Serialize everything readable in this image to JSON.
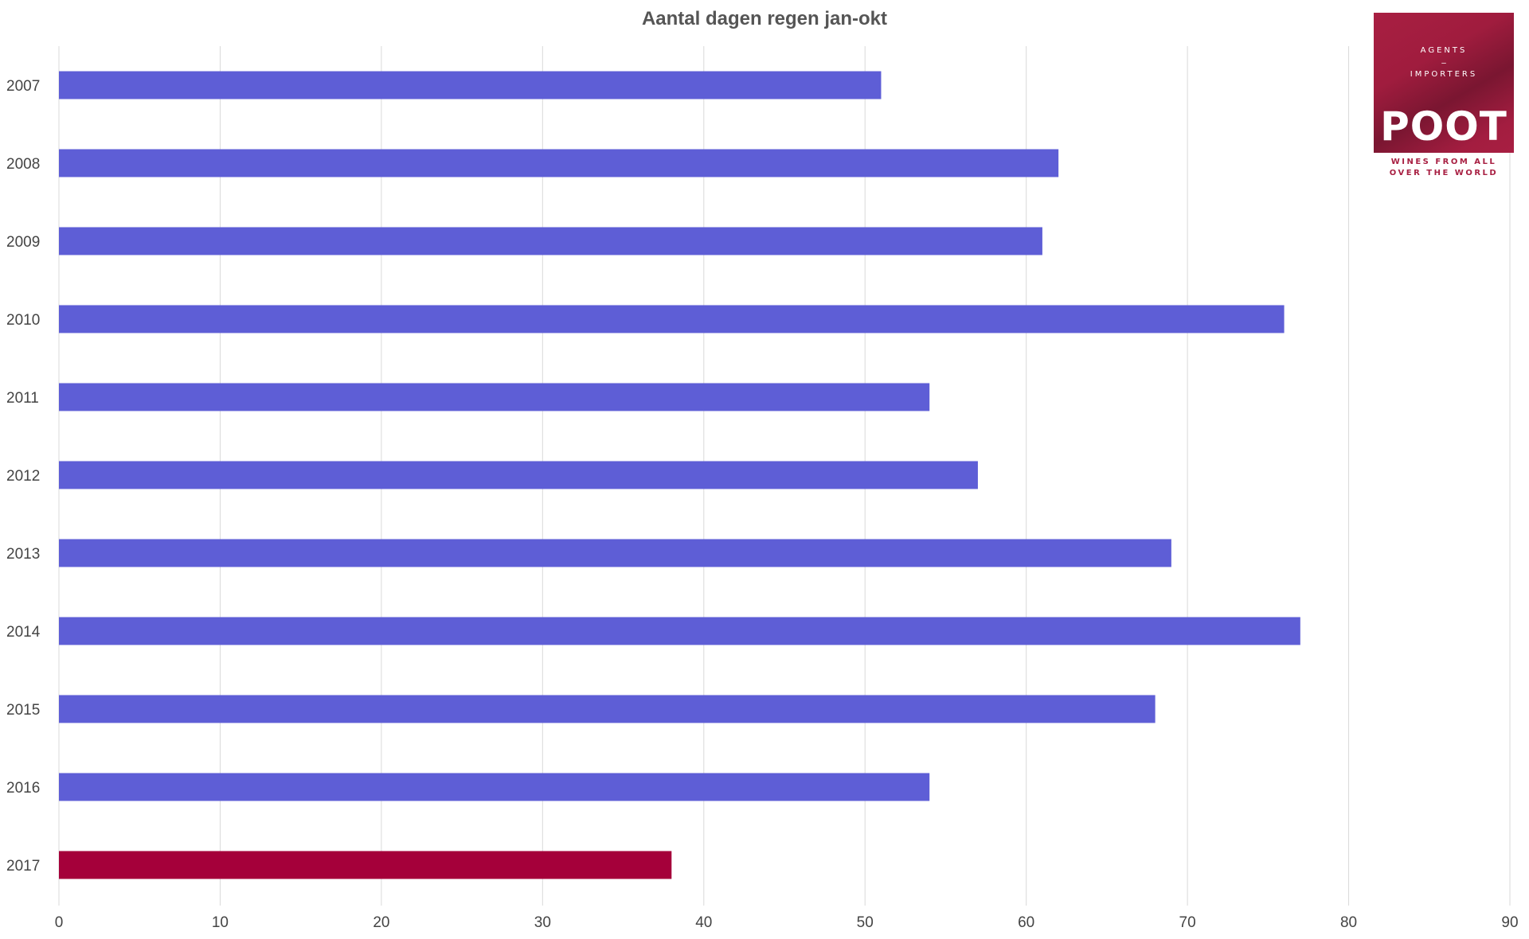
{
  "chart_data": {
    "type": "bar",
    "orientation": "horizontal",
    "title": "Aantal dagen regen jan-okt",
    "xlabel": "",
    "ylabel": "",
    "categories": [
      "2007",
      "2008",
      "2009",
      "2010",
      "2011",
      "2012",
      "2013",
      "2014",
      "2015",
      "2016",
      "2017"
    ],
    "values": [
      51,
      62,
      61,
      76,
      54,
      57,
      69,
      77,
      68,
      54,
      38
    ],
    "highlight_category": "2017",
    "xlim": [
      0,
      90
    ],
    "x_ticks": [
      0,
      10,
      20,
      30,
      40,
      50,
      60,
      70,
      80,
      90
    ],
    "grid": "vertical",
    "legend": "none",
    "colors": {
      "bar": "#5e5ed6",
      "highlight": "#a5003a",
      "grid": "#d9d9d9",
      "tick_text": "#444444",
      "title_text": "#555555"
    }
  },
  "logo": {
    "line1": "AGENTS",
    "dash": "–",
    "line2": "IMPORTERS",
    "word": "POOT",
    "tagline1": "WINES FROM ALL",
    "tagline2": "OVER THE WORLD"
  }
}
